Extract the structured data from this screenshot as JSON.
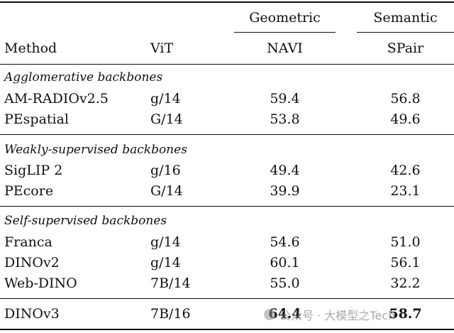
{
  "header": {
    "group_geometric": "Geometric",
    "group_semantic": "Semantic",
    "col_method": "Method",
    "col_vit": "ViT",
    "col_navi": "NAVI",
    "col_spair": "SPair"
  },
  "sections": [
    {
      "title": "Agglomerative backbones",
      "rows": [
        {
          "method": "AM-RADIOv2.5",
          "vit": "g/14",
          "navi": "59.4",
          "spair": "56.8"
        },
        {
          "method": "PEspatial",
          "vit": "G/14",
          "navi": "53.8",
          "spair": "49.6"
        }
      ]
    },
    {
      "title": "Weakly-supervised backbones",
      "rows": [
        {
          "method": "SigLIP 2",
          "vit": "g/16",
          "navi": "49.4",
          "spair": "42.6"
        },
        {
          "method": "PEcore",
          "vit": "G/14",
          "navi": "39.9",
          "spair": "23.1"
        }
      ]
    },
    {
      "title": "Self-supervised backbones",
      "rows": [
        {
          "method": "Franca",
          "vit": "g/14",
          "navi": "54.6",
          "spair": "51.0"
        },
        {
          "method": "DINOv2",
          "vit": "g/14",
          "navi": "60.1",
          "spair": "56.1"
        },
        {
          "method": "Web-DINO",
          "vit": "7B/14",
          "navi": "55.0",
          "spair": "32.2"
        }
      ]
    }
  ],
  "final_row": {
    "method": "DINOv3",
    "vit": "7B/16",
    "navi": "64.4",
    "spair": "58.7"
  },
  "watermark": {
    "text": "公众号 · 大模型之Tech",
    "icon": "wechat-icon"
  }
}
